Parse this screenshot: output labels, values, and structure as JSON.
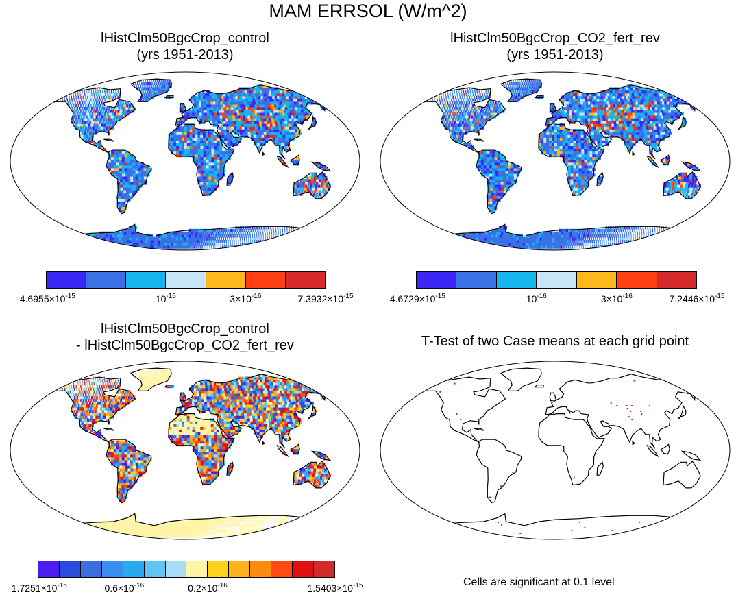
{
  "title": "MAM ERRSOL (W/m^2)",
  "panels": [
    {
      "id": "control",
      "title_lines": [
        "lHistClm50BgcCrop_control",
        "(yrs 1951-2013)"
      ],
      "fill_style": "field",
      "colorbar": {
        "colors": [
          "#3b28f5",
          "#3a72e6",
          "#18b4ee",
          "#c9e6f8",
          "#ffb81c",
          "#ff4010",
          "#d72a2a"
        ],
        "labels": [
          {
            "m": "-4.6955",
            "e": "-15",
            "at_boundary": 0
          },
          {
            "m": "",
            "e": "-16",
            "at_boundary": 3
          },
          {
            "m": "3",
            "e": "-16",
            "at_boundary": 5
          },
          {
            "m": "7.3932",
            "e": "-15",
            "at_boundary": 7
          }
        ]
      }
    },
    {
      "id": "co2",
      "title_lines": [
        "lHistClm50BgcCrop_CO2_fert_rev",
        "(yrs 1951-2013)"
      ],
      "fill_style": "field",
      "colorbar": {
        "colors": [
          "#3b28f5",
          "#3a72e6",
          "#18b4ee",
          "#c9e6f8",
          "#ffb81c",
          "#ff4010",
          "#d72a2a"
        ],
        "labels": [
          {
            "m": "-4.6729",
            "e": "-15",
            "at_boundary": 0
          },
          {
            "m": "",
            "e": "-16",
            "at_boundary": 3
          },
          {
            "m": "3",
            "e": "-16",
            "at_boundary": 5
          },
          {
            "m": "7.2446",
            "e": "-15",
            "at_boundary": 7
          }
        ]
      }
    },
    {
      "id": "diff",
      "title_lines": [
        "lHistClm50BgcCrop_control",
        "- lHistClm50BgcCrop_CO2_fert_rev"
      ],
      "fill_style": "diff",
      "colorbar": {
        "colors": [
          "#4a1ef0",
          "#2a4be0",
          "#3c6ee0",
          "#3a8ef0",
          "#28aaf0",
          "#62c4f0",
          "#a8dcf4",
          "#fff5a8",
          "#ffd21a",
          "#ffb21a",
          "#ff8a10",
          "#ff4a10",
          "#e01010",
          "#d42a2a"
        ],
        "labels": [
          {
            "m": "-1.7251",
            "e": "-15",
            "at_boundary": 0
          },
          {
            "m": "-0.6",
            "e": "-16",
            "at_boundary": 4
          },
          {
            "m": "0.2",
            "e": "-16",
            "at_boundary": 8
          },
          {
            "m": "1.5403",
            "e": "-15",
            "at_boundary": 14
          }
        ]
      }
    },
    {
      "id": "ttest",
      "title_lines": [
        "T-Test of two Case means at each grid point"
      ],
      "fill_style": "ttest",
      "note": "Cells are significant at 0.1 level"
    }
  ]
}
